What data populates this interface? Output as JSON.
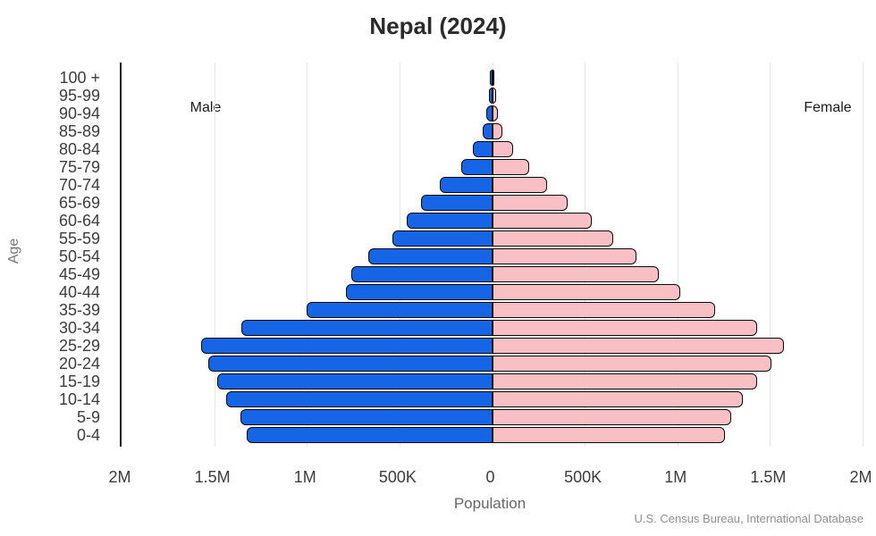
{
  "chart_data": {
    "type": "bar",
    "variant": "population-pyramid",
    "title": "Nepal (2024)",
    "xlabel": "Population",
    "ylabel": "Age",
    "source": "U.S. Census Bureau, International Database",
    "left_series_label": "Male",
    "right_series_label": "Female",
    "legend_position": "top-inside",
    "grid": true,
    "age_groups": [
      "100 +",
      "95-99",
      "90-94",
      "85-89",
      "80-84",
      "75-79",
      "70-74",
      "65-69",
      "60-64",
      "55-59",
      "50-54",
      "45-49",
      "40-44",
      "35-39",
      "30-34",
      "25-29",
      "20-24",
      "15-19",
      "10-14",
      "5-9",
      "0-4"
    ],
    "series": [
      {
        "name": "Male",
        "side": "left",
        "values": [
          2000,
          8000,
          20000,
          43000,
          96000,
          159000,
          275000,
          376000,
          453000,
          530000,
          660000,
          752000,
          781000,
          993000,
          1345000,
          1562000,
          1524000,
          1475000,
          1427000,
          1350000,
          1316000
        ]
      },
      {
        "name": "Female",
        "side": "right",
        "values": [
          3000,
          11000,
          24000,
          48000,
          106000,
          193000,
          289000,
          400000,
          526000,
          646000,
          771000,
          892000,
          1008000,
          1196000,
          1423000,
          1567000,
          1500000,
          1423000,
          1345000,
          1283000,
          1249000
        ]
      }
    ],
    "x_ticks": [
      {
        "label": "2M",
        "value": -2000000
      },
      {
        "label": "1.5M",
        "value": -1500000
      },
      {
        "label": "1M",
        "value": -1000000
      },
      {
        "label": "500K",
        "value": -500000
      },
      {
        "label": "0",
        "value": 0
      },
      {
        "label": "500K",
        "value": 500000
      },
      {
        "label": "1M",
        "value": 1000000
      },
      {
        "label": "1.5M",
        "value": 1500000
      },
      {
        "label": "2M",
        "value": 2000000
      }
    ],
    "xlim": [
      -2000000,
      2000000
    ],
    "colors": {
      "male": "#1565e6",
      "female": "#f8c0c4",
      "bar_outline": "#0a0a0a"
    }
  }
}
